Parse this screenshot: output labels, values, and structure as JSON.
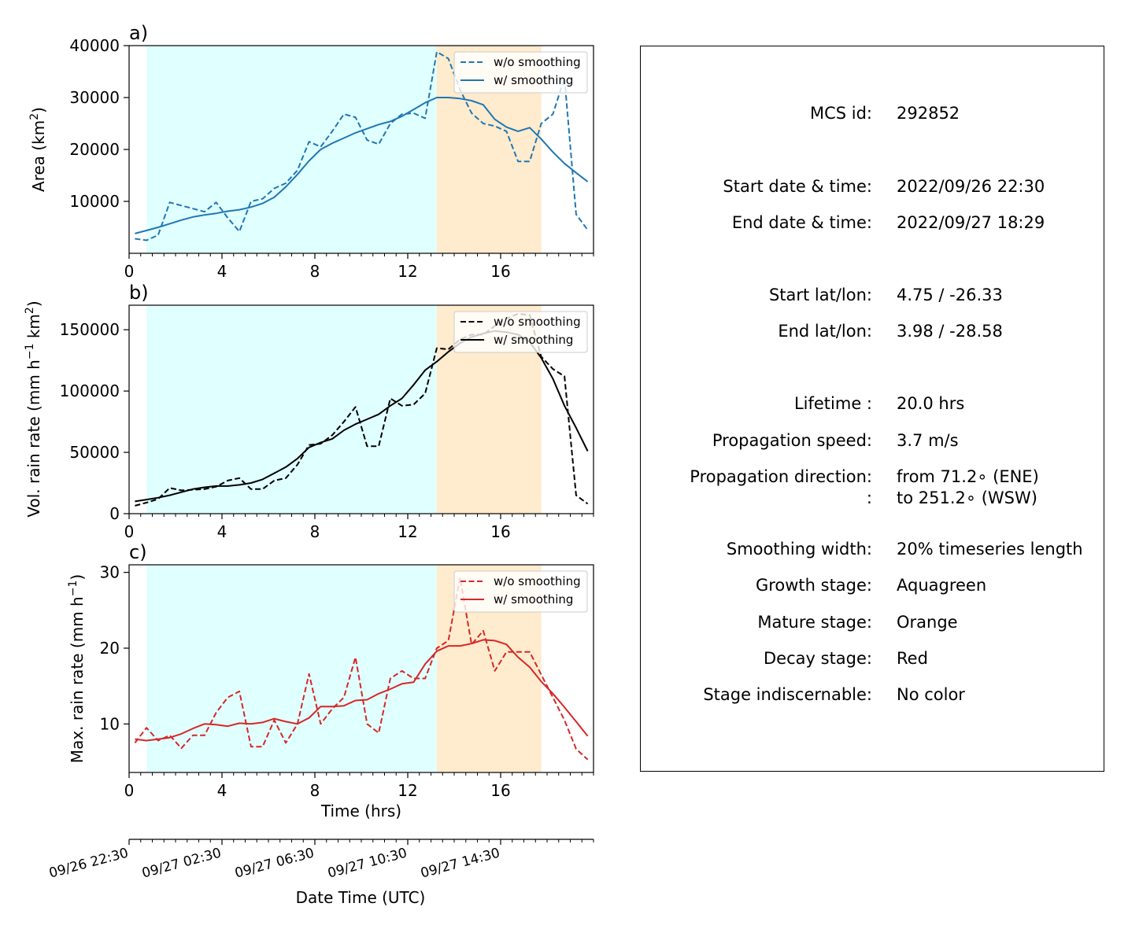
{
  "chart_data": [
    {
      "type": "line",
      "panel_label": "a)",
      "ylabel_main": "Area  (km",
      "ylabel_sup": "2",
      "ylabel_end": ")",
      "xlim": [
        0,
        20
      ],
      "ylim": [
        0,
        40000
      ],
      "xticks": [
        0,
        4,
        8,
        12,
        16
      ],
      "yticks": [
        10000,
        20000,
        30000,
        40000
      ],
      "color": "#1f77b4",
      "legend": [
        "w/o smoothing",
        "w/ smoothing"
      ],
      "x": [
        0.25,
        0.75,
        1.25,
        1.75,
        2.25,
        2.75,
        3.25,
        3.75,
        4.25,
        4.75,
        5.25,
        5.75,
        6.25,
        6.75,
        7.25,
        7.75,
        8.25,
        8.75,
        9.25,
        9.75,
        10.25,
        10.75,
        11.25,
        11.75,
        12.25,
        12.75,
        13.25,
        13.75,
        14.25,
        14.75,
        15.25,
        15.75,
        16.25,
        16.75,
        17.25,
        17.75,
        18.25,
        18.75,
        19.25,
        19.75
      ],
      "series": [
        {
          "name": "w/o smoothing",
          "style": "dashed",
          "values": [
            2800,
            2500,
            3500,
            9800,
            9200,
            8600,
            8000,
            9800,
            6800,
            4200,
            10000,
            10500,
            12500,
            13500,
            16000,
            21500,
            20500,
            23500,
            26800,
            26200,
            21800,
            21000,
            25000,
            26800,
            27000,
            26000,
            38800,
            37500,
            31500,
            27000,
            25000,
            24500,
            23500,
            17700,
            17700,
            25000,
            26800,
            33800,
            7500,
            4500
          ]
        },
        {
          "name": "w/ smoothing",
          "style": "solid",
          "values": [
            3800,
            4400,
            5000,
            5700,
            6400,
            7000,
            7400,
            7700,
            8100,
            8400,
            8900,
            9600,
            10800,
            12800,
            15200,
            17800,
            20000,
            21200,
            22200,
            23200,
            24000,
            24800,
            25400,
            26400,
            27700,
            29000,
            30000,
            30000,
            29800,
            29400,
            28600,
            25800,
            24300,
            23500,
            24200,
            22000,
            19500,
            17300,
            15500,
            13800
          ]
        }
      ]
    },
    {
      "type": "line",
      "panel_label": "b)",
      "ylabel_main": "Vol. rain rate (mm h",
      "ylabel_sup": "−1",
      "ylabel_mid": " km",
      "ylabel_sup2": "2",
      "ylabel_end": ")",
      "xlim": [
        0,
        20
      ],
      "ylim": [
        0,
        170000
      ],
      "xticks": [
        0,
        4,
        8,
        12,
        16
      ],
      "yticks": [
        0,
        50000,
        100000,
        150000
      ],
      "color": "#000000",
      "legend": [
        "w/o smoothing",
        "w/ smoothing"
      ],
      "x": [
        0.25,
        0.75,
        1.25,
        1.75,
        2.25,
        2.75,
        3.25,
        3.75,
        4.25,
        4.75,
        5.25,
        5.75,
        6.25,
        6.75,
        7.25,
        7.75,
        8.25,
        8.75,
        9.25,
        9.75,
        10.25,
        10.75,
        11.25,
        11.75,
        12.25,
        12.75,
        13.25,
        13.75,
        14.25,
        14.75,
        15.25,
        15.75,
        16.25,
        16.75,
        17.25,
        17.75,
        18.25,
        18.75,
        19.25,
        19.75
      ],
      "series": [
        {
          "name": "w/o smoothing",
          "style": "dashed",
          "values": [
            6500,
            9000,
            12000,
            21000,
            19000,
            19500,
            20000,
            22000,
            27000,
            29000,
            20000,
            20000,
            27000,
            29000,
            40000,
            56000,
            57000,
            64000,
            75000,
            87000,
            55000,
            55000,
            94000,
            88000,
            89000,
            98000,
            135000,
            134000,
            142000,
            146000,
            146000,
            153000,
            159000,
            163000,
            162000,
            128000,
            118000,
            112000,
            15000,
            8000
          ]
        },
        {
          "name": "w/ smoothing",
          "style": "solid",
          "values": [
            10000,
            11500,
            13000,
            15000,
            17500,
            20000,
            21500,
            22500,
            22500,
            23500,
            25000,
            28000,
            33000,
            38000,
            45000,
            54000,
            58000,
            61000,
            68000,
            73000,
            77000,
            81000,
            88000,
            94000,
            105000,
            117000,
            124000,
            132000,
            139000,
            144000,
            147000,
            149000,
            148000,
            146000,
            140000,
            127000,
            110000,
            88000,
            70000,
            51000
          ]
        }
      ]
    },
    {
      "type": "line",
      "panel_label": "c)",
      "ylabel_main": "Max. rain rate  (mm h",
      "ylabel_sup": "−1",
      "ylabel_end": ")",
      "xlabel": "Time (hrs)",
      "xlim": [
        0,
        20
      ],
      "ylim": [
        3.6,
        31
      ],
      "xticks": [
        0,
        4,
        8,
        12,
        16
      ],
      "yticks": [
        10,
        20,
        30
      ],
      "color": "#d62728",
      "legend": [
        "w/o smoothing",
        "w/ smoothing"
      ],
      "x": [
        0.25,
        0.75,
        1.25,
        1.75,
        2.25,
        2.75,
        3.25,
        3.75,
        4.25,
        4.75,
        5.25,
        5.75,
        6.25,
        6.75,
        7.25,
        7.75,
        8.25,
        8.75,
        9.25,
        9.75,
        10.25,
        10.75,
        11.25,
        11.75,
        12.25,
        12.75,
        13.25,
        13.75,
        14.25,
        14.75,
        15.25,
        15.75,
        16.25,
        16.75,
        17.25,
        17.75,
        18.25,
        18.75,
        19.25,
        19.75
      ],
      "series": [
        {
          "name": "w/o smoothing",
          "style": "dashed",
          "values": [
            7.5,
            9.5,
            7.8,
            8.5,
            6.8,
            8.5,
            8.5,
            11.5,
            13.5,
            14.3,
            7.0,
            7.0,
            10.5,
            7.5,
            10.0,
            16.6,
            10.0,
            12.0,
            13.5,
            18.8,
            10.0,
            8.8,
            16.0,
            17.0,
            16.0,
            16.0,
            20.0,
            21.0,
            29.3,
            20.5,
            22.3,
            17.0,
            19.5,
            19.5,
            19.5,
            16.5,
            13.5,
            10.5,
            6.7,
            5.3
          ]
        },
        {
          "name": "w/ smoothing",
          "style": "solid",
          "values": [
            8.0,
            7.8,
            8.0,
            8.2,
            8.7,
            9.4,
            10.0,
            9.9,
            9.7,
            10.1,
            10.0,
            10.2,
            10.7,
            10.3,
            10.0,
            10.8,
            12.3,
            12.3,
            12.4,
            13.1,
            13.2,
            14.0,
            14.6,
            15.3,
            15.5,
            17.9,
            19.6,
            20.3,
            20.3,
            20.6,
            21.1,
            21.0,
            20.5,
            18.8,
            17.5,
            15.6,
            14.0,
            12.2,
            10.3,
            8.4
          ]
        }
      ]
    }
  ],
  "stages": [
    {
      "name": "Growth stage",
      "color": "#e0ffff",
      "start": 0.75,
      "end": 13.25
    },
    {
      "name": "Mature stage",
      "color": "#ffebcd",
      "start": 13.25,
      "end": 17.75
    }
  ],
  "date_axis": {
    "label": "Date Time (UTC)",
    "ticks": [
      "09/26 22:30",
      "09/27 02:30",
      "09/27 06:30",
      "09/27 10:30",
      "09/27 14:30"
    ]
  },
  "info": {
    "rows": [
      {
        "label": "MCS id:",
        "value": "292852"
      },
      {
        "label": "Start date & time:",
        "value": "2022/09/26 22:30"
      },
      {
        "label": "End date & time:",
        "value": "2022/09/27 18:29"
      },
      {
        "label": "Start lat/lon:",
        "value": "4.75 / -26.33"
      },
      {
        "label": "End lat/lon:",
        "value": "3.98 / -28.58"
      },
      {
        "label": "Lifetime :",
        "value": "20.0 hrs"
      },
      {
        "label": "Propagation speed:",
        "value": "3.7 m/s"
      },
      {
        "label": "Propagation direction:",
        "value": "from  71.2∘ (ENE)"
      },
      {
        "label": ":",
        "value": "to   251.2∘ (WSW)"
      },
      {
        "label": "Smoothing width:",
        "value": "20% timeseries length"
      },
      {
        "label": "Growth stage:",
        "value": "Aquagreen"
      },
      {
        "label": "Mature stage:",
        "value": "Orange"
      },
      {
        "label": "Decay stage:",
        "value": "Red"
      },
      {
        "label": "Stage indiscernable:",
        "value": "No color"
      }
    ]
  }
}
